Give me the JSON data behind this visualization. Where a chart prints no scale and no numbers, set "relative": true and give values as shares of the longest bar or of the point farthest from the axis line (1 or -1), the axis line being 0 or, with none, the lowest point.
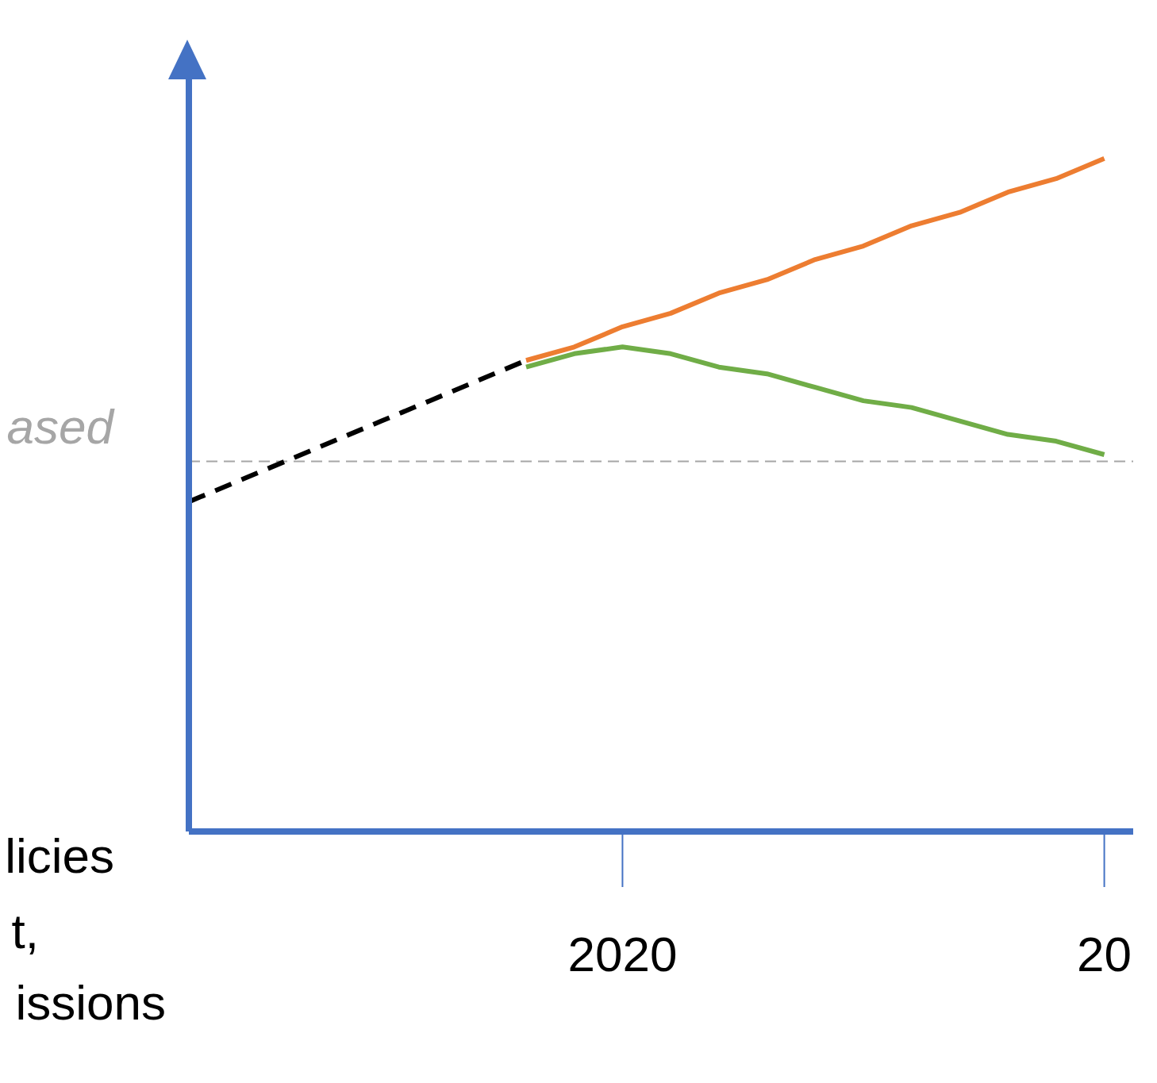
{
  "chart_data": {
    "type": "line",
    "relative": true,
    "categories": [
      null,
      null,
      null,
      null,
      null,
      null,
      null,
      null,
      null,
      "2020",
      null,
      null,
      null,
      null,
      null,
      null,
      null,
      null,
      null,
      "20"
    ],
    "legend": false,
    "grid": false,
    "marker": "none",
    "series": [
      {
        "color": "#000000",
        "line_style": "dashed",
        "values": [
          0.49,
          0.52,
          0.55,
          0.58,
          0.61,
          0.64,
          0.67,
          0.7,
          null,
          null,
          null,
          null,
          null,
          null,
          null,
          null,
          null,
          null,
          null,
          null
        ]
      },
      {
        "color": "#ed7d31",
        "line_style": "solid",
        "values": [
          null,
          null,
          null,
          null,
          null,
          null,
          null,
          0.7,
          0.72,
          0.75,
          0.77,
          0.8,
          0.82,
          0.85,
          0.87,
          0.9,
          0.92,
          0.95,
          0.97,
          1.0
        ]
      },
      {
        "color": "#70ad47",
        "line_style": "solid",
        "values": [
          null,
          null,
          null,
          null,
          null,
          null,
          null,
          0.69,
          0.71,
          0.72,
          0.71,
          0.69,
          0.68,
          0.66,
          0.64,
          0.63,
          0.61,
          0.59,
          0.58,
          0.56
        ]
      }
    ],
    "ref_lines": [
      {
        "axis": "y",
        "value": 0.55,
        "label": "ased",
        "color": "#a6a6a6",
        "line_style": "dashed"
      }
    ],
    "annotations": [
      "licies",
      "t,",
      "issions"
    ]
  }
}
